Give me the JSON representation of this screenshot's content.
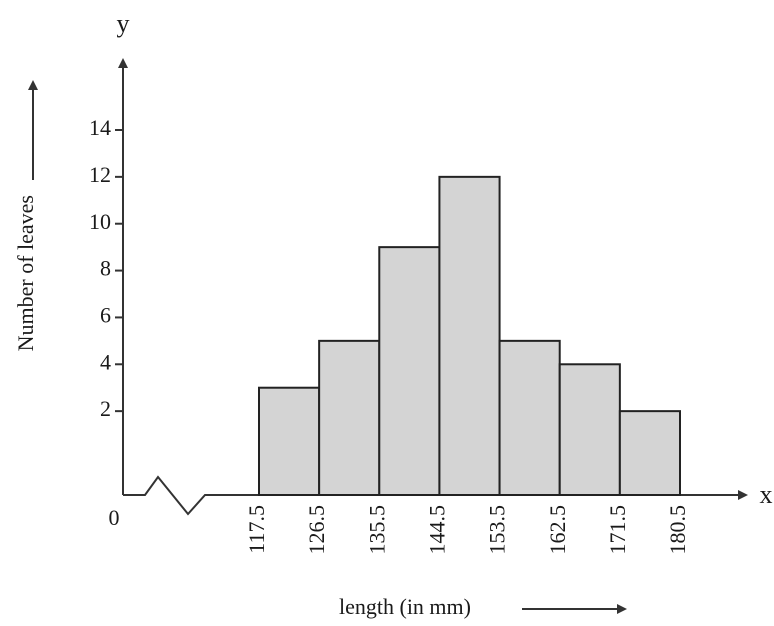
{
  "chart_data": {
    "type": "histogram",
    "y_axis_name": "y",
    "x_axis_name": "x",
    "origin_label": "0",
    "y_label": "Number of leaves",
    "x_label": "length (in mm)",
    "bins": [
      117.5,
      126.5,
      135.5,
      144.5,
      153.5,
      162.5,
      171.5,
      180.5
    ],
    "values": [
      3,
      5,
      9,
      12,
      5,
      4,
      2
    ],
    "color": "#d4d4d4",
    "xlim": [
      117.5,
      180.5
    ],
    "ylim": [
      0,
      14
    ],
    "yticks": [
      2,
      4,
      6,
      8,
      10,
      12,
      14
    ]
  }
}
